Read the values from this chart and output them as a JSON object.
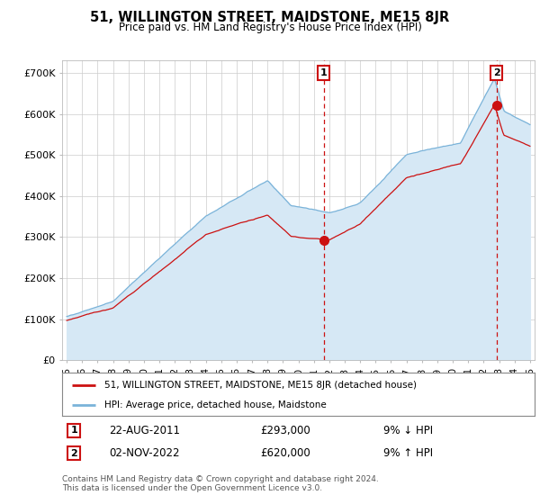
{
  "title": "51, WILLINGTON STREET, MAIDSTONE, ME15 8JR",
  "subtitle": "Price paid vs. HM Land Registry's House Price Index (HPI)",
  "ylabel_ticks": [
    "£0",
    "£100K",
    "£200K",
    "£300K",
    "£400K",
    "£500K",
    "£600K",
    "£700K"
  ],
  "ytick_values": [
    0,
    100000,
    200000,
    300000,
    400000,
    500000,
    600000,
    700000
  ],
  "ylim": [
    0,
    730000
  ],
  "hpi_color": "#7ab3d9",
  "hpi_fill_color": "#d6e8f5",
  "price_color": "#cc1111",
  "marker1_date": 2011.64,
  "marker1_price": 293000,
  "marker2_date": 2022.84,
  "marker2_price": 620000,
  "annotation1": "22-AUG-2011",
  "annotation1_price": "£293,000",
  "annotation1_hpi": "9% ↓ HPI",
  "annotation2": "02-NOV-2022",
  "annotation2_price": "£620,000",
  "annotation2_hpi": "9% ↑ HPI",
  "legend_label1": "51, WILLINGTON STREET, MAIDSTONE, ME15 8JR (detached house)",
  "legend_label2": "HPI: Average price, detached house, Maidstone",
  "footer1": "Contains HM Land Registry data © Crown copyright and database right 2024.",
  "footer2": "This data is licensed under the Open Government Licence v3.0.",
  "bg_color": "#ffffff",
  "grid_color": "#cccccc"
}
